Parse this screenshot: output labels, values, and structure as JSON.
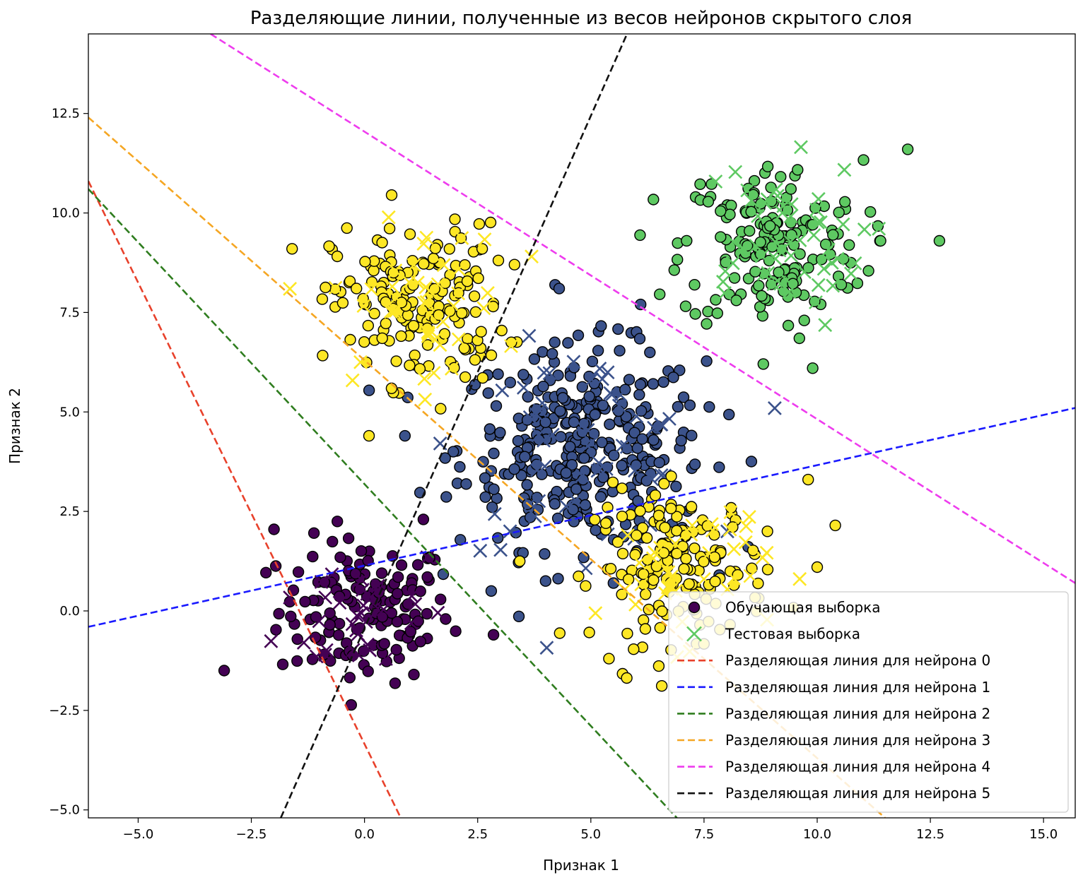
{
  "chart_data": {
    "type": "scatter",
    "title": "Разделяющие линии, полученные из весов нейронов скрытого слоя",
    "xlabel": "Признак 1",
    "ylabel": "Признак 2",
    "xlim": [
      -6.1,
      15.7
    ],
    "ylim": [
      -5.2,
      14.5
    ],
    "xticks": [
      -5.0,
      -2.5,
      0.0,
      2.5,
      5.0,
      7.5,
      10.0,
      12.5,
      15.0
    ],
    "yticks": [
      -5.0,
      -2.5,
      0.0,
      2.5,
      5.0,
      7.5,
      10.0,
      12.5
    ],
    "xtick_labels": [
      "−5.0",
      "−2.5",
      "0.0",
      "2.5",
      "5.0",
      "7.5",
      "10.0",
      "12.5",
      "15.0"
    ],
    "ytick_labels": [
      "−5.0",
      "−2.5",
      "0.0",
      "2.5",
      "5.0",
      "7.5",
      "10.0",
      "12.5"
    ],
    "grid": false,
    "legend_position": "lower-right",
    "clusters": [
      {
        "class": 0,
        "color": "#440154",
        "center": [
          0.0,
          0.0
        ],
        "spread": [
          0.95,
          0.9
        ],
        "train_count": 140,
        "test_count": 35,
        "extra_points": [
          [
            -2.0,
            2.05
          ],
          [
            -3.1,
            -1.5
          ],
          [
            2.85,
            -0.6
          ],
          [
            1.3,
            2.3
          ]
        ]
      },
      {
        "class": 1,
        "color": "#3b528b",
        "center": [
          4.8,
          4.1
        ],
        "spread": [
          1.35,
          1.25
        ],
        "train_count": 320,
        "test_count": 60,
        "extra_points": [
          [
            4.3,
            8.1
          ],
          [
            2.8,
            0.5
          ],
          [
            4.0,
            0.75
          ],
          [
            5.5,
            0.7
          ],
          [
            6.1,
            7.7
          ]
        ]
      },
      {
        "class": 2,
        "color": "#5ec962",
        "center": [
          9.0,
          9.2
        ],
        "spread": [
          1.0,
          1.05
        ],
        "train_count": 170,
        "test_count": 55,
        "extra_points": [
          [
            12.0,
            11.6
          ],
          [
            12.7,
            9.3
          ],
          [
            9.9,
            6.1
          ],
          [
            11.4,
            9.3
          ]
        ]
      },
      {
        "class": 3,
        "color": "#fde725",
        "center": [
          1.2,
          7.7
        ],
        "spread": [
          0.95,
          1.0
        ],
        "train_count": 170,
        "test_count": 45,
        "extra_points": [
          [
            0.6,
            10.45
          ],
          [
            -1.6,
            9.1
          ],
          [
            0.1,
            4.4
          ],
          [
            2.6,
            9.1
          ]
        ]
      },
      {
        "class": 3,
        "color": "#fde725",
        "center": [
          7.0,
          1.1
        ],
        "spread": [
          0.95,
          0.95
        ],
        "train_count": 160,
        "test_count": 40,
        "extra_points": [
          [
            10.4,
            2.15
          ],
          [
            9.8,
            3.3
          ],
          [
            5.4,
            -1.2
          ],
          [
            10.0,
            1.1
          ],
          [
            8.9,
            2.0
          ]
        ]
      }
    ],
    "separating_lines": [
      {
        "neuron": 0,
        "color": "#e8412b",
        "points": [
          [
            -6.1,
            10.8
          ],
          [
            0.8,
            -5.2
          ]
        ]
      },
      {
        "neuron": 1,
        "color": "#1a1aff",
        "points": [
          [
            -6.1,
            -0.4
          ],
          [
            15.7,
            5.1
          ]
        ]
      },
      {
        "neuron": 2,
        "color": "#2f7d1f",
        "points": [
          [
            -6.1,
            10.6
          ],
          [
            6.9,
            -5.2
          ]
        ]
      },
      {
        "neuron": 3,
        "color": "#f5a623",
        "points": [
          [
            -6.1,
            12.4
          ],
          [
            11.5,
            -5.2
          ]
        ]
      },
      {
        "neuron": 4,
        "color": "#ee3cee",
        "points": [
          [
            -3.4,
            14.5
          ],
          [
            15.7,
            0.7
          ]
        ]
      },
      {
        "neuron": 5,
        "color": "#111111",
        "points": [
          [
            -1.85,
            -5.2
          ],
          [
            5.8,
            14.5
          ]
        ]
      }
    ],
    "legend": [
      {
        "kind": "marker-circle",
        "color": "#440154",
        "label": "Обучающая выборка"
      },
      {
        "kind": "marker-x",
        "color": "#5ec962",
        "label": "Тестовая выборка"
      },
      {
        "kind": "line",
        "color": "#e8412b",
        "label": "Разделяющая линия для нейрона 0"
      },
      {
        "kind": "line",
        "color": "#1a1aff",
        "label": "Разделяющая линия для нейрона 1"
      },
      {
        "kind": "line",
        "color": "#2f7d1f",
        "label": "Разделяющая линия для нейрона 2"
      },
      {
        "kind": "line",
        "color": "#f5a623",
        "label": "Разделяющая линия для нейрона 3"
      },
      {
        "kind": "line",
        "color": "#ee3cee",
        "label": "Разделяющая линия для нейрона 4"
      },
      {
        "kind": "line",
        "color": "#111111",
        "label": "Разделяющая линия для нейрона 5"
      }
    ]
  }
}
